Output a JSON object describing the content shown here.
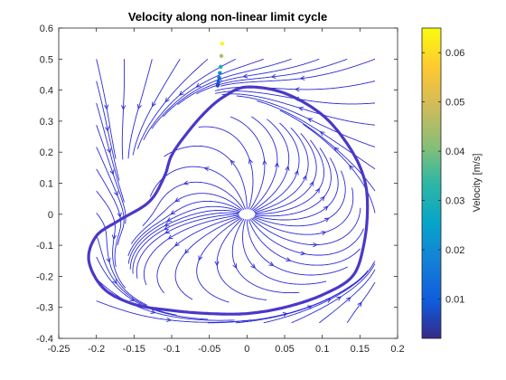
{
  "chart_data": {
    "type": "streamplot",
    "title": "Velocity along non-linear limit cycle",
    "xlabel": "",
    "ylabel": "",
    "xlim": [
      -0.25,
      0.2
    ],
    "ylim": [
      -0.4,
      0.6
    ],
    "x_ticks": [
      "-0.25",
      "-0.2",
      "-0.15",
      "-0.1",
      "-0.05",
      "0",
      "0.05",
      "0.1",
      "0.15",
      "0.2"
    ],
    "y_ticks": [
      "0.6",
      "0.5",
      "0.4",
      "0.3",
      "0.2",
      "0.1",
      "0",
      "-0.1",
      "-0.2",
      "-0.3",
      "-0.4"
    ],
    "field_region": {
      "x": [
        -0.2,
        0.17
      ],
      "y": [
        -0.35,
        0.5
      ]
    },
    "streamline_color": "#2a2ad8",
    "limit_cycle_color": "#4a38c8",
    "limit_cycle": {
      "x": [
        0.0,
        0.05,
        0.1,
        0.135,
        0.155,
        0.16,
        0.155,
        0.14,
        0.1,
        0.05,
        0.0,
        -0.05,
        -0.1,
        -0.15,
        -0.19,
        -0.21,
        -0.2,
        -0.17,
        -0.13,
        -0.11,
        -0.1,
        -0.08,
        -0.055,
        -0.03,
        0.0
      ],
      "y": [
        0.41,
        0.39,
        0.32,
        0.22,
        0.12,
        0.02,
        -0.1,
        -0.2,
        -0.26,
        -0.3,
        -0.32,
        -0.32,
        -0.31,
        -0.29,
        -0.24,
        -0.15,
        -0.07,
        -0.02,
        0.04,
        0.12,
        0.19,
        0.26,
        0.33,
        0.38,
        0.41
      ]
    },
    "trajectory_points": {
      "x": [
        -0.033,
        -0.034,
        -0.035,
        -0.036,
        -0.037,
        -0.038,
        -0.039
      ],
      "y": [
        0.55,
        0.51,
        0.475,
        0.455,
        0.44,
        0.425,
        0.415
      ],
      "velocity": [
        0.064,
        0.045,
        0.03,
        0.02,
        0.014,
        0.01,
        0.006
      ]
    },
    "colorbar": {
      "label": "Velocity [m/s]",
      "ticks": [
        "0.06",
        "0.05",
        "0.04",
        "0.03",
        "0.02",
        "0.01"
      ],
      "tick_values": [
        0.06,
        0.05,
        0.04,
        0.03,
        0.02,
        0.01
      ],
      "range": [
        0.002,
        0.065
      ],
      "colormap": "parula"
    }
  }
}
